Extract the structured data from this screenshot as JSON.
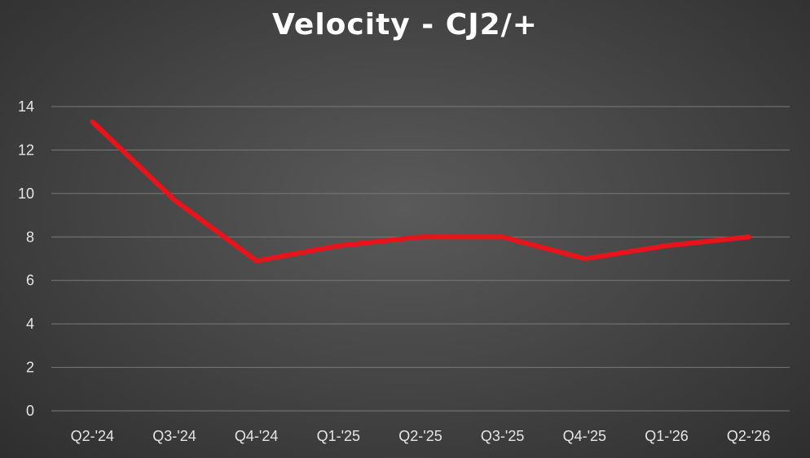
{
  "chart_data": {
    "type": "line",
    "title": "Velocity - CJ2/+",
    "xlabel": "",
    "ylabel": "",
    "categories": [
      "Q2-'24",
      "Q3-'24",
      "Q4-'24",
      "Q1-'25",
      "Q2-'25",
      "Q3-'25",
      "Q4-'25",
      "Q1-'26",
      "Q2-'26"
    ],
    "series": [
      {
        "values": [
          13.3,
          9.7,
          6.9,
          7.6,
          8.0,
          8.0,
          7.0,
          7.6,
          8.0
        ]
      }
    ],
    "ylim": [
      0,
      14
    ],
    "yticks": [
      0,
      2,
      4,
      6,
      8,
      10,
      12,
      14
    ],
    "grid": true,
    "legend": "none",
    "colors": {
      "line": "#e8141c",
      "grid": "#7a7a7a",
      "text": "#ffffff"
    }
  }
}
